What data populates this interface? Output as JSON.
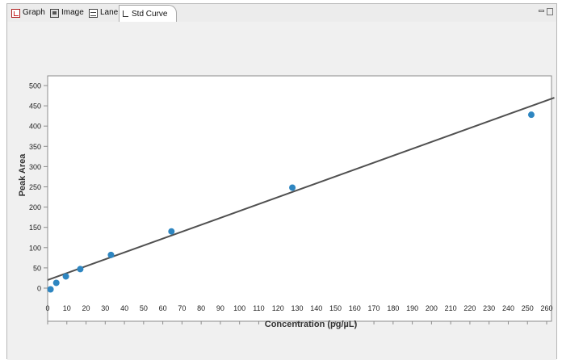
{
  "tabs": [
    {
      "label": "Graph",
      "icon": "graph-icon",
      "active": false
    },
    {
      "label": "Image",
      "icon": "image-icon",
      "active": false
    },
    {
      "label": "Lane",
      "icon": "lane-icon",
      "active": false
    },
    {
      "label": "Std Curve",
      "icon": "std-curve-icon",
      "active": true
    }
  ],
  "window_controls": {
    "minimize": "minimize-icon",
    "maximize": "maximize-icon"
  },
  "chart_data": {
    "type": "scatter",
    "title": "",
    "xlabel": "Concentration (pg/µL)",
    "ylabel": "Peak Area",
    "xlim": [
      0,
      260
    ],
    "ylim": [
      0,
      500
    ],
    "xticks": [
      0,
      10,
      20,
      30,
      40,
      50,
      60,
      70,
      80,
      90,
      100,
      110,
      120,
      130,
      140,
      150,
      160,
      170,
      180,
      190,
      200,
      210,
      220,
      230,
      240,
      250,
      260
    ],
    "yticks": [
      0,
      50,
      100,
      150,
      200,
      250,
      300,
      350,
      400,
      450,
      500
    ],
    "points": [
      {
        "x": 1.5,
        "y": -3
      },
      {
        "x": 4.5,
        "y": 13
      },
      {
        "x": 9.5,
        "y": 29
      },
      {
        "x": 17,
        "y": 47
      },
      {
        "x": 33,
        "y": 82
      },
      {
        "x": 64.5,
        "y": 140
      },
      {
        "x": 127.5,
        "y": 248
      },
      {
        "x": 252,
        "y": 428
      }
    ],
    "fit_line": {
      "x": [
        0,
        264
      ],
      "y": [
        20,
        470
      ]
    },
    "grid": false,
    "point_color": "#2e86c1",
    "line_color": "#505050"
  }
}
